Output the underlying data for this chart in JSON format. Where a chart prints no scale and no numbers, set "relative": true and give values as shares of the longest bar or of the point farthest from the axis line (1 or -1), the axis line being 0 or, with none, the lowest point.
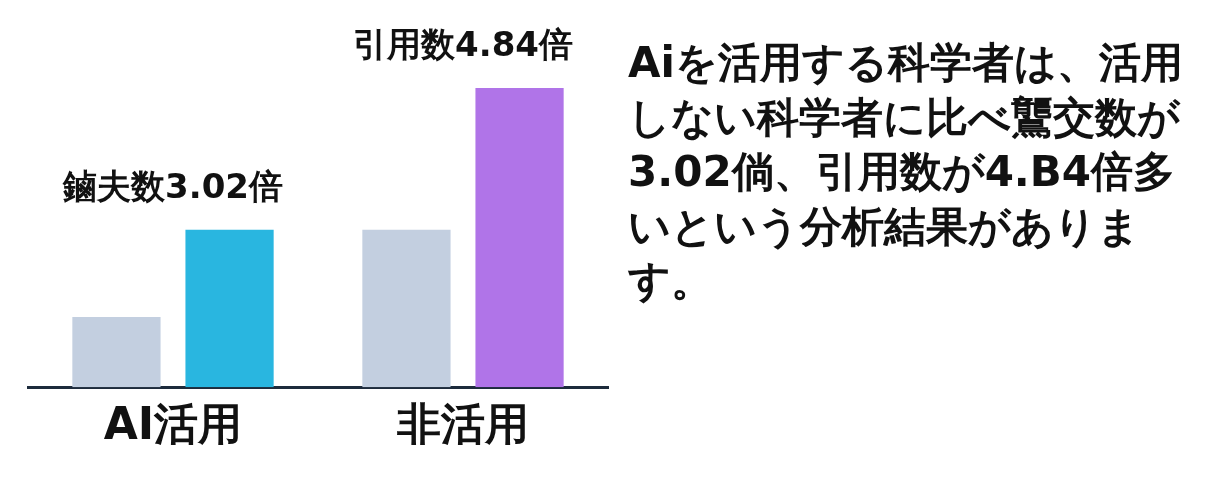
{
  "chart_data": {
    "type": "bar",
    "relative": true,
    "categories": [
      "AI活用",
      "非活用"
    ],
    "series": [
      {
        "colors": [
          "#c3cfe0",
          "#c3cfe0"
        ],
        "values": [
          0.235,
          0.526
        ]
      },
      {
        "colors": [
          "#29b6e0",
          "#b074e8"
        ],
        "values": [
          0.526,
          1
        ]
      }
    ],
    "annotations": [
      "鏀夫数3.02倍",
      "引用数4.84倍",
      "Aiを活用する科学者は、活用しない科学者に比べ鸗交数が3.02倘、引用数が4.B4倍多いという分析結果があります。"
    ],
    "grid": false,
    "legend": false
  }
}
